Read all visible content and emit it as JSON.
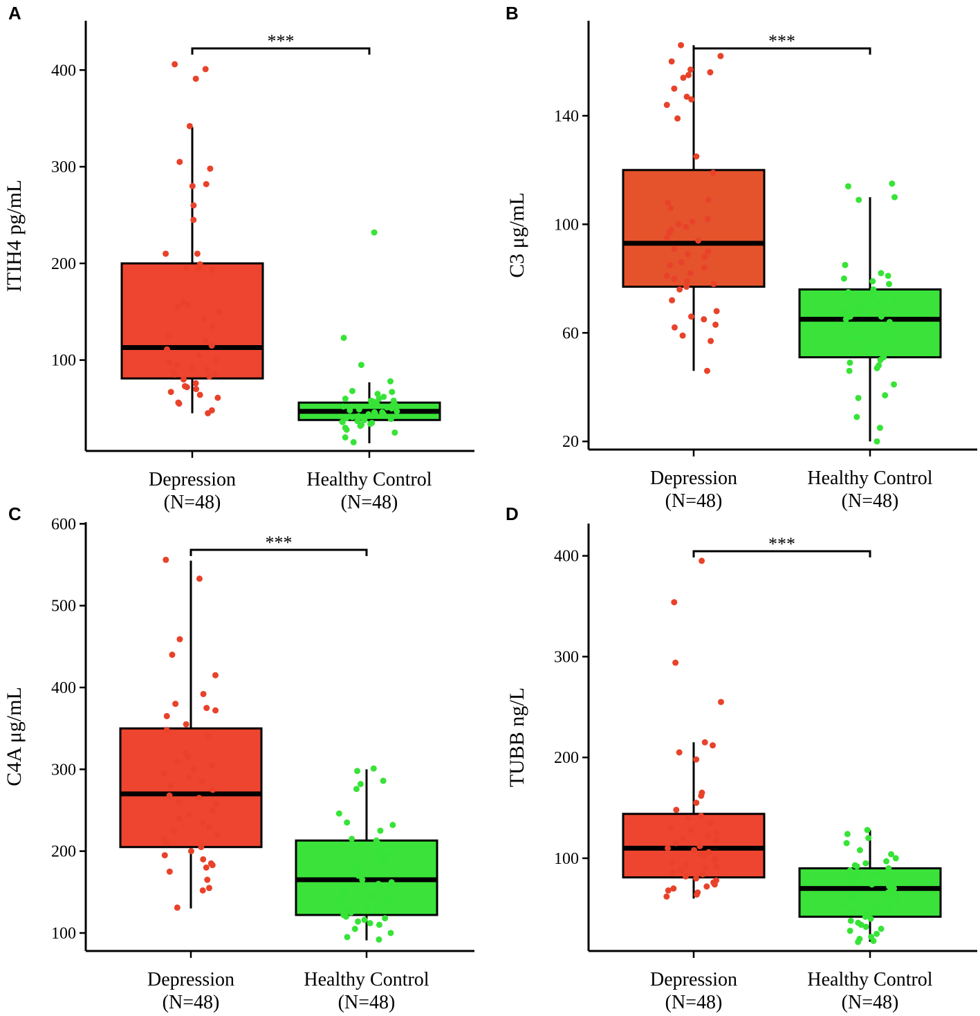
{
  "colors": {
    "depression_box_A": "#ee4530",
    "depression_box_B": "#e5532c",
    "depression_box_C": "#ee4530",
    "depression_box_D": "#ee4530",
    "control_box": "#3ae23a",
    "depression_point": "#e8422a",
    "control_point": "#37e337",
    "axis": "#000000"
  },
  "chart_data": [
    {
      "panel": "A",
      "type": "box",
      "ylabel": "ITIH4 pg/mL",
      "ylim": [
        6,
        451
      ],
      "yticks": [
        100,
        200,
        300,
        400
      ],
      "significance": "***",
      "groups": [
        {
          "name": "Depression",
          "n_label": "(N=48)",
          "q1": 81,
          "median": 113,
          "q3": 200,
          "whisker_low": 45,
          "whisker_high": 341,
          "points": [
            406,
            401,
            391,
            342,
            305,
            298,
            282,
            280,
            260,
            245,
            210,
            210,
            195,
            195,
            193,
            160,
            157,
            155,
            150,
            143,
            135,
            115,
            111,
            105,
            100,
            95,
            90,
            88,
            86,
            85,
            80,
            76,
            73,
            72,
            70,
            67,
            64,
            61,
            56,
            55,
            45,
            48,
            199,
            125,
            92,
            83,
            120,
            98
          ]
        },
        {
          "name": "Healthy Control",
          "n_label": "(N=48)",
          "q1": 38,
          "median": 47,
          "q3": 56,
          "whisker_low": 14,
          "whisker_high": 77,
          "points": [
            232,
            123,
            95,
            78,
            68,
            67,
            65,
            62,
            60,
            60,
            58,
            57,
            56,
            55,
            55,
            54,
            53,
            52,
            51,
            50,
            49,
            48,
            47,
            46,
            46,
            45,
            44,
            43,
            42,
            41,
            40,
            40,
            39,
            38,
            37,
            36,
            36,
            35,
            34,
            33,
            32,
            30,
            28,
            25,
            20,
            15,
            58,
            44
          ]
        }
      ]
    },
    {
      "panel": "B",
      "type": "box",
      "ylabel": "C3 μg/mL",
      "ylim": [
        17,
        175
      ],
      "yticks": [
        20,
        60,
        100,
        140
      ],
      "significance": "***",
      "groups": [
        {
          "name": "Depression",
          "n_label": "(N=48)",
          "q1": 77,
          "median": 93,
          "q3": 120,
          "whisker_low": 46,
          "whisker_high": 166,
          "points": [
            166,
            162,
            160,
            157,
            156,
            155,
            154,
            150,
            147,
            146,
            144,
            139,
            125,
            119,
            109,
            108,
            106,
            102,
            101,
            100,
            98,
            97,
            95,
            94,
            91,
            90,
            88,
            86,
            85,
            84,
            82,
            81,
            80,
            79,
            78,
            77,
            76,
            72,
            68,
            66,
            65,
            63,
            62,
            59,
            57,
            46,
            99,
            89
          ]
        },
        {
          "name": "Healthy Control",
          "n_label": "(N=48)",
          "q1": 51,
          "median": 65,
          "q3": 76,
          "whisker_low": 20,
          "whisker_high": 110,
          "points": [
            115,
            114,
            110,
            109,
            85,
            82,
            81,
            80,
            79,
            78,
            76,
            75,
            74,
            73,
            72,
            71,
            70,
            69,
            68,
            67,
            66,
            66,
            65,
            64,
            63,
            62,
            61,
            60,
            58,
            57,
            56,
            55,
            53,
            52,
            51,
            50,
            49,
            48,
            47,
            46,
            41,
            37,
            36,
            29,
            25,
            20,
            68,
            59
          ]
        }
      ]
    },
    {
      "panel": "C",
      "type": "box",
      "ylabel": "C4A μg/mL",
      "ylim": [
        78,
        602
      ],
      "yticks": [
        100,
        200,
        300,
        400,
        500,
        600
      ],
      "significance": "***",
      "groups": [
        {
          "name": "Depression",
          "n_label": "(N=48)",
          "q1": 205,
          "median": 270,
          "q3": 350,
          "whisker_low": 130,
          "whisker_high": 555,
          "points": [
            556,
            533,
            459,
            440,
            415,
            392,
            380,
            375,
            372,
            365,
            355,
            348,
            340,
            320,
            315,
            310,
            305,
            300,
            295,
            290,
            285,
            280,
            275,
            268,
            265,
            260,
            250,
            245,
            240,
            235,
            230,
            225,
            220,
            215,
            210,
            205,
            200,
            195,
            190,
            185,
            183,
            180,
            175,
            165,
            155,
            152,
            131,
            258
          ]
        },
        {
          "name": "Healthy Control",
          "n_label": "(N=48)",
          "q1": 122,
          "median": 165,
          "q3": 213,
          "whisker_low": 91,
          "whisker_high": 300,
          "points": [
            301,
            298,
            286,
            282,
            276,
            246,
            235,
            232,
            225,
            215,
            213,
            210,
            205,
            200,
            198,
            195,
            190,
            185,
            180,
            175,
            170,
            165,
            160,
            158,
            155,
            150,
            148,
            145,
            142,
            140,
            138,
            135,
            132,
            130,
            128,
            125,
            122,
            120,
            118,
            116,
            114,
            112,
            110,
            105,
            100,
            95,
            92,
            162
          ]
        }
      ]
    },
    {
      "panel": "D",
      "type": "box",
      "ylabel": "TUBB ng/L",
      "ylim": [
        8,
        432
      ],
      "yticks": [
        100,
        200,
        300,
        400
      ],
      "significance": "***",
      "groups": [
        {
          "name": "Depression",
          "n_label": "(N=48)",
          "q1": 81,
          "median": 110,
          "q3": 144,
          "whisker_low": 60,
          "whisker_high": 215,
          "points": [
            395,
            354,
            294,
            255,
            215,
            212,
            205,
            198,
            165,
            162,
            155,
            148,
            142,
            140,
            135,
            130,
            128,
            125,
            122,
            120,
            118,
            115,
            112,
            110,
            108,
            106,
            104,
            102,
            100,
            98,
            96,
            94,
            92,
            90,
            88,
            86,
            84,
            82,
            80,
            78,
            76,
            74,
            72,
            70,
            68,
            66,
            64,
            62
          ]
        },
        {
          "name": "Healthy Control",
          "n_label": "(N=48)",
          "q1": 42,
          "median": 70,
          "q3": 90,
          "whisker_low": 17,
          "whisker_high": 128,
          "points": [
            128,
            124,
            120,
            115,
            108,
            104,
            100,
            97,
            95,
            93,
            92,
            90,
            88,
            86,
            84,
            82,
            80,
            78,
            76,
            74,
            72,
            70,
            68,
            66,
            64,
            62,
            60,
            58,
            56,
            54,
            52,
            50,
            48,
            46,
            44,
            42,
            40,
            38,
            36,
            34,
            32,
            30,
            28,
            25,
            22,
            20,
            18,
            17
          ]
        }
      ]
    }
  ]
}
